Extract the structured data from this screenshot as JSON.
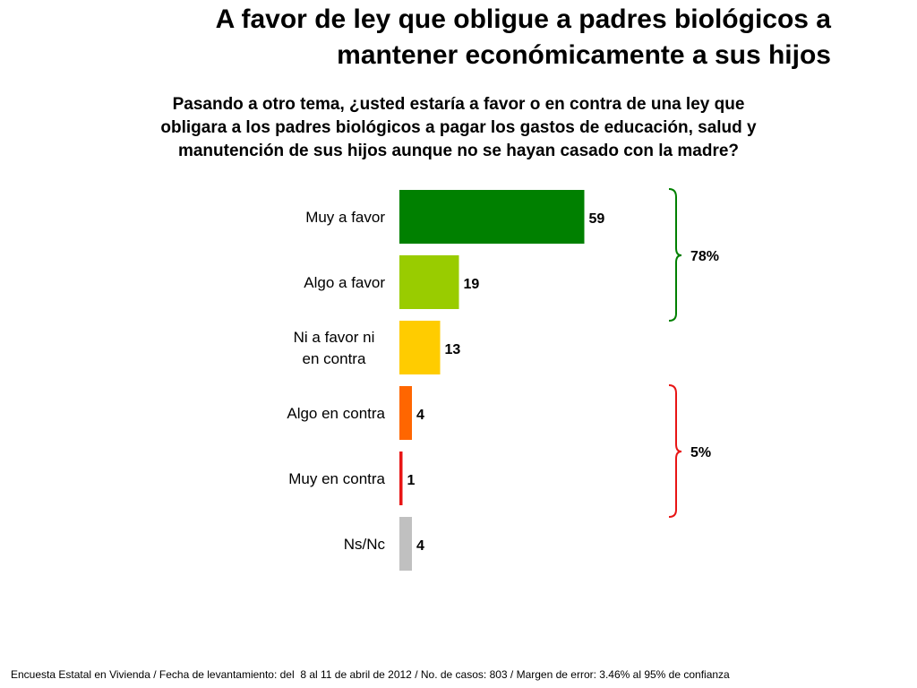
{
  "title": {
    "line1": "A favor de ley que obligue a padres biológicos a",
    "line2": "mantener económicamente a sus hijos"
  },
  "question": {
    "line1": "Pasando a otro tema, ¿usted estaría a favor o en contra de una ley que",
    "line2": "obligara a los padres biológicos a pagar los gastos de educación, salud y",
    "line3": "manutención de sus hijos aunque no se hayan casado con la madre?"
  },
  "chart_data": {
    "type": "bar",
    "orientation": "horizontal",
    "categories": [
      [
        "Muy a favor"
      ],
      [
        "Algo a favor"
      ],
      [
        "Ni a favor ni",
        "en contra"
      ],
      [
        "Algo en contra"
      ],
      [
        "Muy en contra"
      ],
      [
        "Ns/Nc"
      ]
    ],
    "values": [
      59,
      19,
      13,
      4,
      1,
      4
    ],
    "colors": [
      "#008000",
      "#99CC00",
      "#FFCC00",
      "#FF6600",
      "#E81515",
      "#C0C0C0"
    ],
    "groups": [
      {
        "label": "78%",
        "from": 0,
        "to": 1,
        "color": "#008000"
      },
      {
        "label": "5%",
        "from": 3,
        "to": 4,
        "color": "#E81515"
      }
    ],
    "xlim": [
      0,
      100
    ],
    "grid": false,
    "legend": "none"
  },
  "footer": "Encuesta Estatal en Vivienda / Fecha de levantamiento: del  8 al 11 de abril de 2012 / No. de casos: 803 / Margen de error: 3.46% al 95% de confianza"
}
